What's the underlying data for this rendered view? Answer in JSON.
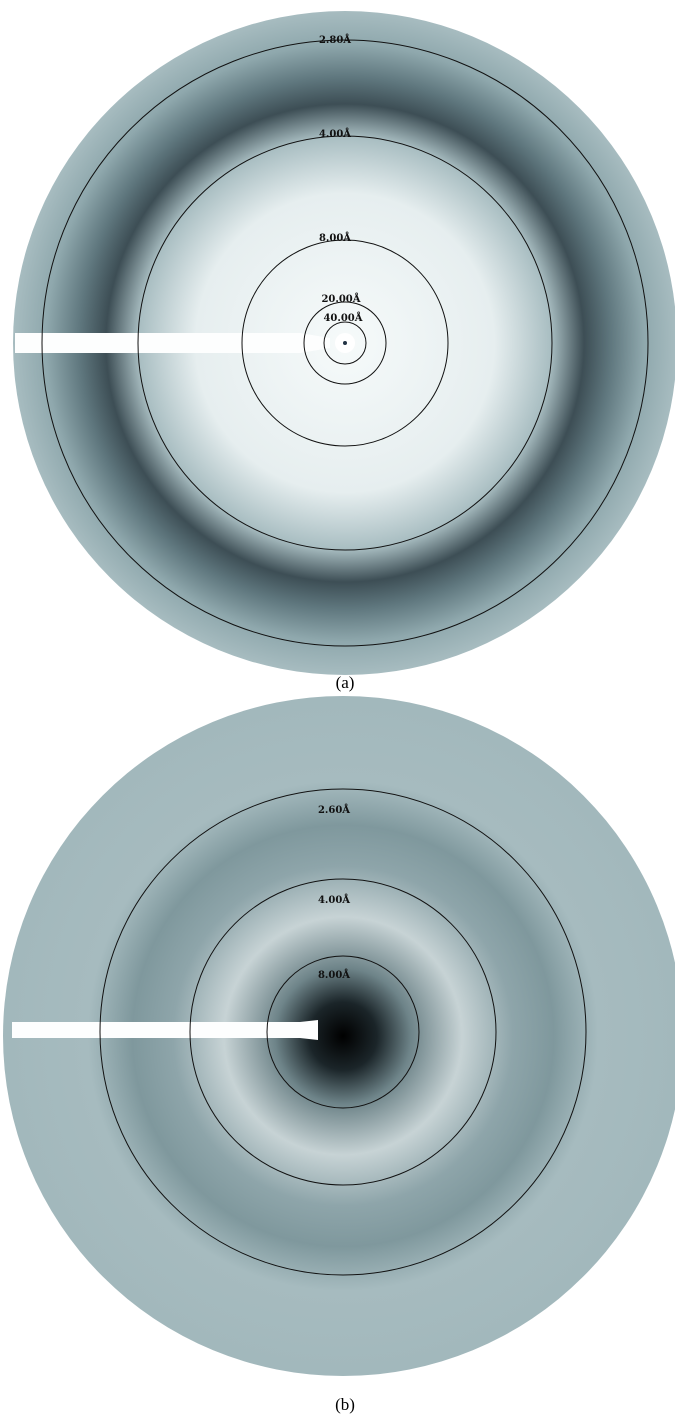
{
  "figure": {
    "panels": [
      {
        "label": "(a)",
        "rings": [
          "2.80Å",
          "4.00Å",
          "8.00Å",
          "20.00Å",
          "40.00Å"
        ]
      },
      {
        "label": "(b)",
        "rings": [
          "2.60Å",
          "4.00Å",
          "8.00Å"
        ]
      }
    ]
  }
}
